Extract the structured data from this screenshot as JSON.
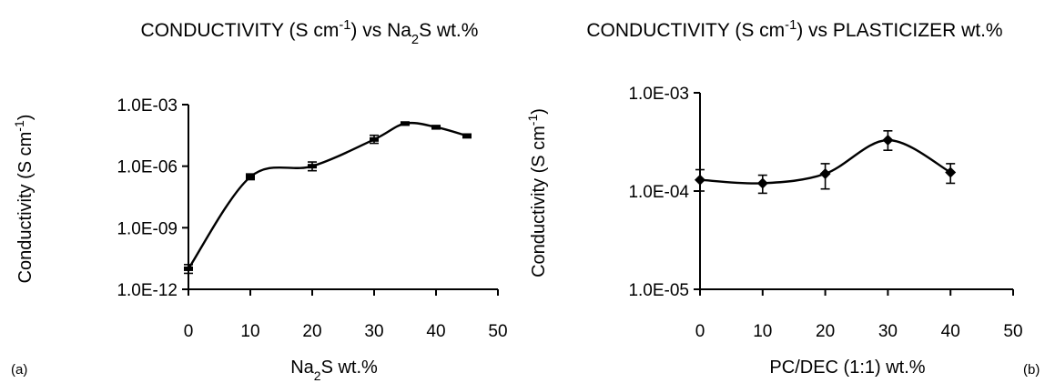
{
  "chart_data": [
    {
      "type": "line",
      "panel_label": "(a)",
      "title": {
        "main": "CONDUCTIVITY (S cm",
        "sup": "-1",
        "tail": ") vs Na",
        "sub": "2",
        "end": "S wt.%"
      },
      "xlabel": {
        "pre": "Na",
        "sub": "2",
        "post": "S  wt.%"
      },
      "ylabel": {
        "main": "Conductivity  (S cm",
        "sup": "-1",
        "end": ")"
      },
      "y_scale": "log",
      "xlim": [
        0,
        50
      ],
      "ylim": [
        1e-12,
        0.001
      ],
      "x_ticks": [
        "0",
        "10",
        "20",
        "30",
        "40",
        "50"
      ],
      "y_ticks": [
        "1.0E-12",
        "1.0E-09",
        "1.0E-06",
        "1.0E-03"
      ],
      "grid": false,
      "marker": "dash",
      "series": [
        {
          "x": [
            0,
            10,
            20,
            30,
            35,
            40,
            45
          ],
          "y": [
            1e-11,
            3e-07,
            1e-06,
            2e-05,
            0.00012,
            8e-05,
            3e-05
          ],
          "err_low": [
            6e-12,
            2.2e-07,
            6e-07,
            1.3e-05,
            0.0001,
            6.5e-05,
            2.4e-05
          ],
          "err_high": [
            1.6e-11,
            4.2e-07,
            1.6e-06,
            3.2e-05,
            0.00014,
            9.5e-05,
            3.7e-05
          ]
        }
      ]
    },
    {
      "type": "line",
      "panel_label": "(b)",
      "title": {
        "main": "CONDUCTIVITY (S cm",
        "sup": "-1",
        "tail": ") vs PLASTICIZER wt.%",
        "sub": "",
        "end": ""
      },
      "xlabel": {
        "pre": "PC/DEC (1:1) wt.%",
        "sub": "",
        "post": ""
      },
      "ylabel": {
        "main": "Conductivity  (S cm",
        "sup": "-1",
        "end": ")"
      },
      "y_scale": "log",
      "xlim": [
        0,
        50
      ],
      "ylim": [
        1e-05,
        0.001
      ],
      "x_ticks": [
        "0",
        "10",
        "20",
        "30",
        "40",
        "50"
      ],
      "y_ticks": [
        "1.0E-05",
        "1.0E-04",
        "1.0E-03"
      ],
      "grid": false,
      "marker": "diamond",
      "series": [
        {
          "x": [
            0,
            10,
            20,
            30,
            40
          ],
          "y": [
            0.00013,
            0.00012,
            0.00015,
            0.00033,
            0.000155
          ],
          "err_low": [
            0.0001,
            9.5e-05,
            0.000105,
            0.00026,
            0.00012
          ],
          "err_high": [
            0.000165,
            0.000145,
            0.00019,
            0.00041,
            0.00019
          ]
        }
      ]
    }
  ]
}
